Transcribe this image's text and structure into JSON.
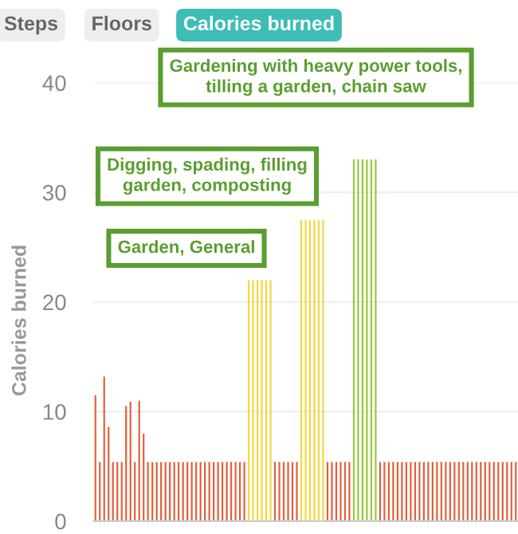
{
  "chart_data": {
    "type": "bar",
    "ylabel": "Calories burned",
    "categories": [
      null,
      null,
      null,
      null,
      null,
      null,
      null,
      null,
      null,
      null,
      null,
      null,
      null,
      null,
      null,
      null,
      null,
      null,
      null,
      null,
      null,
      null,
      null,
      null,
      null,
      null,
      null,
      null,
      null,
      null,
      null,
      null,
      null,
      null,
      null,
      null,
      null,
      null,
      null,
      null,
      null,
      null,
      null,
      null,
      null,
      null,
      null,
      null,
      null,
      null,
      null,
      null,
      null,
      null,
      null,
      null,
      null,
      null,
      null,
      null,
      null,
      null,
      null,
      null,
      null,
      null,
      null,
      null,
      null,
      null,
      null,
      null,
      null,
      null,
      null,
      null,
      null,
      null,
      null,
      null,
      null,
      null,
      null,
      null,
      null,
      null,
      null,
      null,
      null,
      null,
      null,
      null,
      null,
      null,
      null,
      null,
      null
    ],
    "values": [
      11.5,
      5.4,
      13.2,
      8.6,
      5.4,
      5.4,
      5.4,
      10.5,
      10.9,
      5.4,
      11,
      8,
      5.4,
      5.4,
      5.4,
      5.4,
      5.4,
      5.4,
      5.4,
      5.4,
      5.4,
      5.4,
      5.4,
      5.4,
      5.4,
      5.4,
      5.4,
      5.4,
      5.4,
      5.4,
      5.4,
      5.4,
      5.4,
      5.4,
      5.4,
      22,
      22,
      22,
      22,
      22,
      22,
      5.4,
      5.4,
      5.4,
      5.4,
      5.4,
      5.4,
      27.5,
      27.5,
      27.5,
      27.5,
      27.5,
      27.5,
      5.4,
      5.4,
      5.4,
      5.4,
      5.4,
      5.4,
      33,
      33,
      33,
      33,
      33,
      33,
      5.4,
      5.4,
      5.4,
      5.4,
      5.4,
      5.4,
      5.4,
      5.4,
      5.4,
      5.4,
      5.4,
      5.4,
      5.4,
      5.4,
      5.4,
      5.4,
      5.4,
      5.4,
      5.4,
      5.4,
      5.4,
      5.4,
      5.4,
      5.4,
      5.4,
      5.4,
      5.4,
      5.4,
      5.4,
      5.4,
      5.4,
      5.4
    ],
    "colors": [
      "#e0603c",
      "#e0603c",
      "#e0603c",
      "#e0603c",
      "#e0603c",
      "#e0603c",
      "#e0603c",
      "#e0603c",
      "#e0603c",
      "#e0603c",
      "#e0603c",
      "#e0603c",
      "#e0603c",
      "#e0603c",
      "#e0603c",
      "#e0603c",
      "#e0603c",
      "#e0603c",
      "#e0603c",
      "#e0603c",
      "#e0603c",
      "#e0603c",
      "#e0603c",
      "#e0603c",
      "#e0603c",
      "#e0603c",
      "#e0603c",
      "#e0603c",
      "#e0603c",
      "#e0603c",
      "#e0603c",
      "#e0603c",
      "#e0603c",
      "#e0603c",
      "#e0603c",
      "#f0d83c",
      "#f0d83c",
      "#f0d83c",
      "#f0d83c",
      "#f0d83c",
      "#f0d83c",
      "#e0603c",
      "#e0603c",
      "#e0603c",
      "#e0603c",
      "#e0603c",
      "#e0603c",
      "#f0d83c",
      "#f0d83c",
      "#f0d83c",
      "#f0d83c",
      "#f0d83c",
      "#f0d83c",
      "#e0603c",
      "#e0603c",
      "#e0603c",
      "#e0603c",
      "#e0603c",
      "#e0603c",
      "#99c73c",
      "#99c73c",
      "#99c73c",
      "#99c73c",
      "#99c73c",
      "#99c73c",
      "#e0603c",
      "#e0603c",
      "#e0603c",
      "#e0603c",
      "#e0603c",
      "#e0603c",
      "#e0603c",
      "#e0603c",
      "#e0603c",
      "#e0603c",
      "#e0603c",
      "#e0603c",
      "#e0603c",
      "#e0603c",
      "#e0603c",
      "#e0603c",
      "#e0603c",
      "#e0603c",
      "#e0603c",
      "#e0603c",
      "#e0603c",
      "#e0603c",
      "#e0603c",
      "#e0603c",
      "#e0603c",
      "#e0603c",
      "#e0603c",
      "#e0603c",
      "#e0603c",
      "#e0603c",
      "#e0603c",
      "#e0603c"
    ],
    "ylim": [
      0,
      40
    ],
    "yticks": [
      0,
      10,
      20,
      30,
      40
    ],
    "grid": "y",
    "tick_labels": "y",
    "annotations": [
      "Steps",
      "Floors",
      "Calories burned",
      "Gardening with heavy power tools,\ntilling a garden, chain saw",
      "Digging, spading, filling\ngarden, composting",
      "Garden, General"
    ]
  }
}
